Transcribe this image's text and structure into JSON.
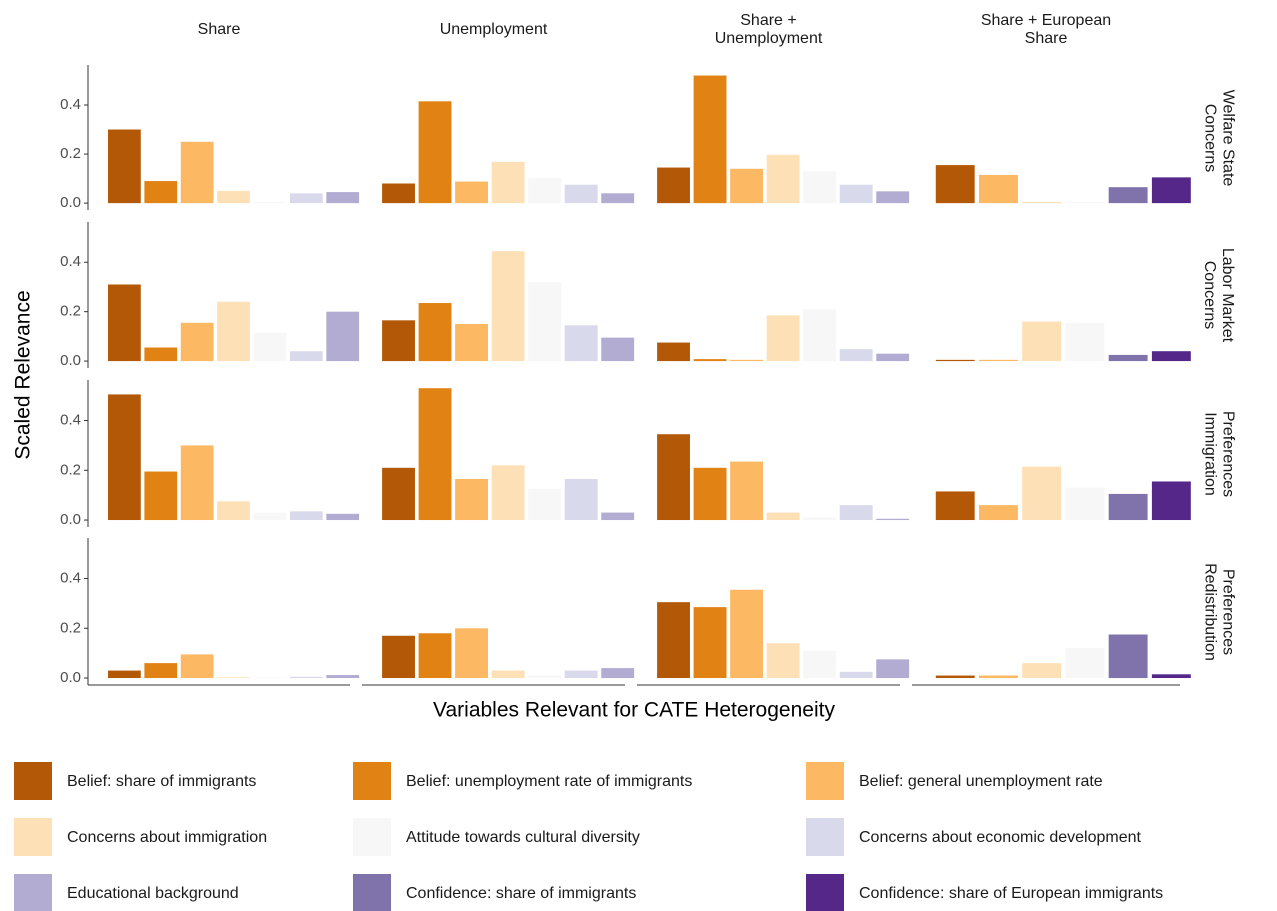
{
  "chart_data": {
    "type": "bar",
    "ylabel": "Scaled Relevance",
    "xlabel": "Variables Relevant for CATE Heterogeneity",
    "columns": [
      "Share",
      "Unemployment",
      "Share + Unemployment",
      "Share + European Share"
    ],
    "rows": [
      "Welfare State Concerns",
      "Labor Market Concerns",
      "Preferences Immigration",
      "Preferences Redistribution"
    ],
    "ylim": [
      -0.028,
      0.563
    ],
    "yticks": [
      {
        "value": 0,
        "label": "0.0"
      },
      {
        "value": 0.2,
        "label": "0.2"
      },
      {
        "value": 0.4,
        "label": "0.4"
      }
    ],
    "series": [
      {
        "name": "Belief: share of immigrants",
        "color": "#b35806",
        "values": [
          0.3,
          0.08,
          0.145,
          0.155,
          0.31,
          0.165,
          0.075,
          0.005,
          0.505,
          0.21,
          0.345,
          0.115,
          0.03,
          0.17,
          0.305,
          0.01
        ]
      },
      {
        "name": "Belief: unemployment rate of immigrants",
        "color": "#e08214",
        "values": [
          0.09,
          0.415,
          0.52,
          null,
          0.055,
          0.235,
          0.008,
          null,
          0.195,
          0.53,
          0.21,
          null,
          0.06,
          0.18,
          0.285,
          null
        ]
      },
      {
        "name": "Belief: general unemployment rate",
        "color": "#fdb863",
        "values": [
          0.25,
          0.088,
          0.14,
          0.115,
          0.155,
          0.15,
          0.005,
          0.005,
          0.3,
          0.165,
          0.235,
          0.06,
          0.095,
          0.2,
          0.355,
          0.01
        ]
      },
      {
        "name": "Concerns about immigration",
        "color": "#fee0b6",
        "values": [
          0.05,
          0.168,
          0.197,
          0.005,
          0.24,
          0.445,
          0.185,
          0.16,
          0.075,
          0.22,
          0.03,
          0.215,
          0.003,
          0.03,
          0.14,
          0.06
        ]
      },
      {
        "name": "Attitude towards cultural diversity",
        "color": "#f7f7f7",
        "values": [
          0.005,
          0.103,
          0.13,
          0.005,
          0.115,
          0.32,
          0.21,
          0.155,
          0.03,
          0.125,
          0.01,
          0.13,
          0.002,
          0.01,
          0.11,
          0.12
        ]
      },
      {
        "name": "Concerns about economic development",
        "color": "#d8daeb",
        "values": [
          0.04,
          0.075,
          0.075,
          null,
          0.04,
          0.145,
          0.048,
          null,
          0.035,
          0.165,
          0.06,
          null,
          0.005,
          0.03,
          0.025,
          null
        ]
      },
      {
        "name": "Educational background",
        "color": "#b2abd2",
        "values": [
          0.045,
          0.04,
          0.048,
          null,
          0.2,
          0.095,
          0.03,
          null,
          0.025,
          0.03,
          0.005,
          null,
          0.012,
          0.04,
          0.075,
          null
        ]
      },
      {
        "name": "Confidence: share of immigrants",
        "color": "#8073ac",
        "values": [
          null,
          null,
          null,
          0.065,
          null,
          null,
          null,
          0.025,
          null,
          null,
          null,
          0.105,
          null,
          null,
          null,
          0.175
        ]
      },
      {
        "name": "Confidence: share of European immigrants",
        "color": "#542788",
        "values": [
          null,
          null,
          null,
          0.105,
          null,
          null,
          null,
          0.04,
          null,
          null,
          null,
          0.155,
          null,
          null,
          null,
          0.015
        ]
      }
    ]
  }
}
